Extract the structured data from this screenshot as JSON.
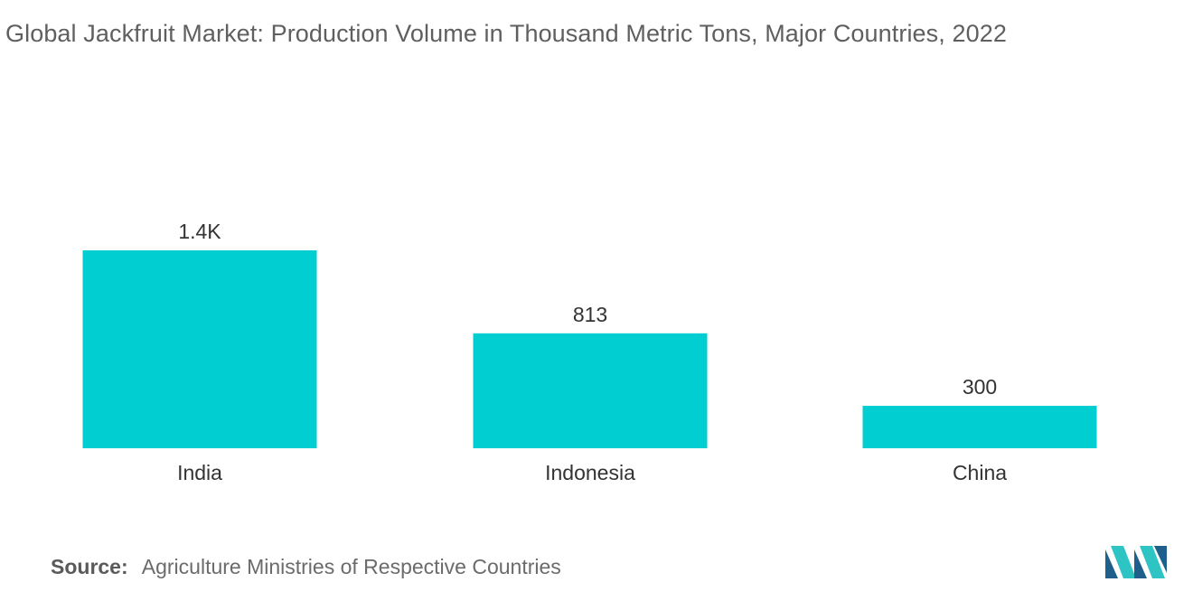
{
  "chart_data": {
    "type": "bar",
    "title": "Global Jackfruit Market: Production Volume in Thousand Metric Tons, Major Countries, 2022",
    "categories": [
      "India",
      "Indonesia",
      "China"
    ],
    "values": [
      1400,
      813,
      300
    ],
    "value_labels": [
      "1.4K",
      "813",
      "300"
    ],
    "xlabel": "",
    "ylabel": "",
    "ylim": [
      0,
      1400
    ],
    "grid": false,
    "legend": "none",
    "bar_color": "#00CED1"
  },
  "source": {
    "key": "Source:",
    "text": "Agriculture Ministries of Respective Countries"
  },
  "logo": {
    "icon": "mordor-intelligence-logo-icon",
    "colors": [
      "#1f5f8b",
      "#2ec4c4"
    ]
  }
}
